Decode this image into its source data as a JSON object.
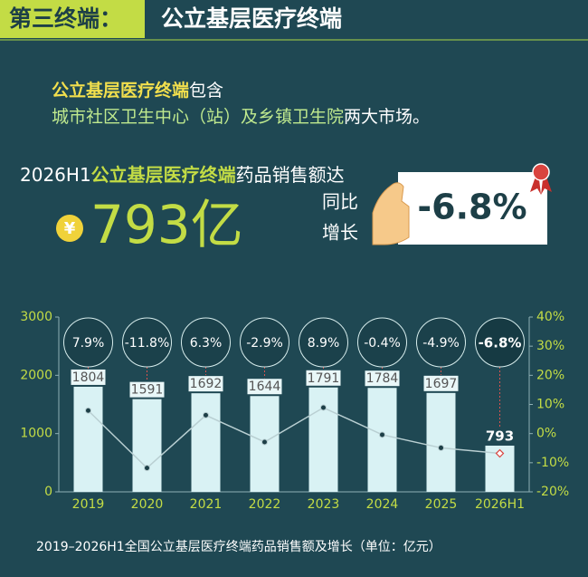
{
  "header": {
    "tag": "第三终端：",
    "title": "公立基层医疗终端"
  },
  "intro": {
    "line1": [
      "公立基层医疗终端",
      "包含"
    ],
    "line2": [
      "城市社区卫生中心（站）及乡镇卫生院",
      "两大市场。"
    ]
  },
  "headline": {
    "parts": [
      "2026H1",
      "公立基层医疗终端",
      "药品销售额达"
    ],
    "currency": "¥",
    "amount": "793亿",
    "growth_label": [
      "同比",
      "增长"
    ],
    "growth": "-6.8%"
  },
  "chart_data": {
    "type": "bar",
    "categories": [
      "2019",
      "2020",
      "2021",
      "2022",
      "2023",
      "2024",
      "2025",
      "2026H1"
    ],
    "series": [
      {
        "type": "bar",
        "color": "#d9f2f4",
        "values": [
          1804,
          1591,
          1692,
          1644,
          1791,
          1784,
          1697,
          793
        ]
      },
      {
        "type": "line",
        "axis": "y2",
        "color": "#b9cfd2",
        "values": [
          7.9,
          -11.8,
          6.3,
          -2.9,
          8.9,
          -0.4,
          -4.9,
          -6.8
        ],
        "value_labels": [
          "7.9%",
          "-11.8%",
          "6.3%",
          "-2.9%",
          "8.9%",
          "-0.4%",
          "-4.9%",
          "-6.8%"
        ]
      }
    ],
    "ylim": [
      0,
      3000
    ],
    "yticks": [
      0,
      1000,
      2000,
      3000
    ],
    "y2lim": [
      -20,
      40
    ],
    "y2ticks": [
      {
        "value": -20,
        "label": "-20%"
      },
      {
        "value": -10,
        "label": "-10%"
      },
      {
        "value": 0,
        "label": "0%"
      },
      {
        "value": 10,
        "label": "10%"
      },
      {
        "value": 20,
        "label": "20%"
      },
      {
        "value": 30,
        "label": "30%"
      },
      {
        "value": 40,
        "label": "40%"
      }
    ],
    "caption": "2019–2026H1全国公立基层医疗终端药品销售额及增长（单位：亿元）"
  }
}
